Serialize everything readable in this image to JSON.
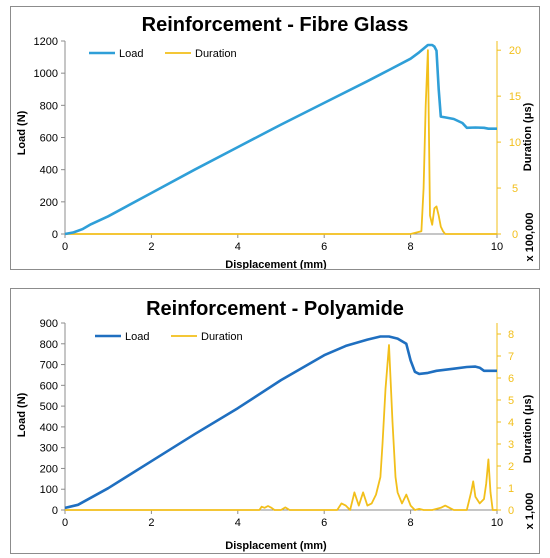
{
  "colors": {
    "load": "#2f9fd8",
    "load2": "#1f6fc0",
    "duration": "#f2bf1a",
    "axis": "#8c8c8c"
  },
  "chart_data": [
    {
      "type": "line",
      "title": "Reinforcement - Fibre Glass",
      "xlabel": "Displacement (mm)",
      "ylabel": "Load (N)",
      "y2label": "Duration (μs)",
      "y2note": "x 100,000",
      "xlim": [
        0,
        10
      ],
      "ylim": [
        0,
        1200
      ],
      "y2lim": [
        0,
        21
      ],
      "xticks": [
        "0",
        "2",
        "4",
        "6",
        "8",
        "10"
      ],
      "yticks": [
        "0",
        "200",
        "400",
        "600",
        "800",
        "1000",
        "1200"
      ],
      "y2ticks": [
        "0",
        "5",
        "10",
        "15",
        "20"
      ],
      "legend": [
        "Load",
        "Duration"
      ],
      "legend_position": "top-left",
      "series": [
        {
          "name": "Load",
          "x": [
            0,
            0.2,
            0.4,
            0.6,
            1,
            2,
            3,
            4,
            5,
            6,
            7,
            7.5,
            8,
            8.2,
            8.4,
            8.5,
            8.55,
            8.6,
            8.65,
            8.7,
            8.8,
            9.0,
            9.2,
            9.3,
            9.5,
            9.7,
            9.8,
            10
          ],
          "y": [
            0,
            10,
            30,
            60,
            110,
            255,
            400,
            540,
            680,
            815,
            950,
            1020,
            1090,
            1130,
            1175,
            1175,
            1165,
            1140,
            900,
            730,
            725,
            715,
            690,
            660,
            662,
            660,
            655,
            655
          ]
        },
        {
          "name": "Duration",
          "x": [
            0,
            8.0,
            8.25,
            8.3,
            8.35,
            8.4,
            8.45,
            8.5,
            8.55,
            8.6,
            8.65,
            8.7,
            8.75,
            8.8,
            9.0,
            10
          ],
          "y": [
            0,
            0,
            0.3,
            5,
            14,
            20,
            2,
            1,
            2.8,
            3,
            2,
            0.8,
            0.3,
            0,
            0,
            0
          ]
        }
      ]
    },
    {
      "type": "line",
      "title": "Reinforcement - Polyamide",
      "xlabel": "Displacement (mm)",
      "ylabel": "Load (N)",
      "y2label": "Duration (μs)",
      "y2note": "x 1,000",
      "xlim": [
        0,
        10
      ],
      "ylim": [
        0,
        900
      ],
      "y2lim": [
        0,
        8.5
      ],
      "xticks": [
        "0",
        "2",
        "4",
        "6",
        "8",
        "10"
      ],
      "yticks": [
        "0",
        "100",
        "200",
        "300",
        "400",
        "500",
        "600",
        "700",
        "800",
        "900"
      ],
      "y2ticks": [
        "0",
        "1",
        "2",
        "3",
        "4",
        "5",
        "6",
        "7",
        "8"
      ],
      "legend": [
        "Load",
        "Duration"
      ],
      "legend_position": "top-left",
      "series": [
        {
          "name": "Load",
          "x": [
            0,
            0.3,
            1,
            2,
            3,
            4,
            5,
            6,
            6.5,
            7,
            7.3,
            7.5,
            7.7,
            7.9,
            8.0,
            8.1,
            8.2,
            8.4,
            8.6,
            9.0,
            9.3,
            9.5,
            9.6,
            9.7,
            10
          ],
          "y": [
            10,
            25,
            105,
            235,
            365,
            490,
            625,
            745,
            790,
            820,
            835,
            835,
            825,
            800,
            720,
            665,
            655,
            660,
            670,
            680,
            688,
            690,
            685,
            670,
            670
          ]
        },
        {
          "name": "Duration",
          "x": [
            0,
            4.5,
            4.55,
            4.62,
            4.7,
            4.78,
            4.85,
            5.0,
            5.1,
            5.2,
            6.3,
            6.4,
            6.5,
            6.6,
            6.65,
            6.7,
            6.8,
            6.9,
            7.0,
            7.1,
            7.2,
            7.3,
            7.35,
            7.42,
            7.5,
            7.58,
            7.65,
            7.7,
            7.8,
            7.9,
            8.0,
            8.1,
            8.2,
            8.3,
            8.5,
            8.7,
            8.8,
            8.9,
            9.0,
            9.3,
            9.4,
            9.45,
            9.5,
            9.6,
            9.7,
            9.75,
            9.8,
            9.85,
            9.9,
            10
          ],
          "y": [
            0,
            0,
            0.15,
            0.1,
            0.18,
            0.1,
            0,
            0,
            0.12,
            0,
            0,
            0.3,
            0.2,
            0,
            0.4,
            0.8,
            0.2,
            0.8,
            0.2,
            0.3,
            0.7,
            1.5,
            3.0,
            5.5,
            7.5,
            4.0,
            1.5,
            0.8,
            0.3,
            0.7,
            0.2,
            0,
            0.05,
            0,
            0,
            0.1,
            0.2,
            0.1,
            0,
            0,
            0.8,
            1.3,
            0.6,
            0.3,
            0.5,
            1.2,
            2.3,
            0.8,
            0,
            0
          ]
        }
      ]
    }
  ]
}
